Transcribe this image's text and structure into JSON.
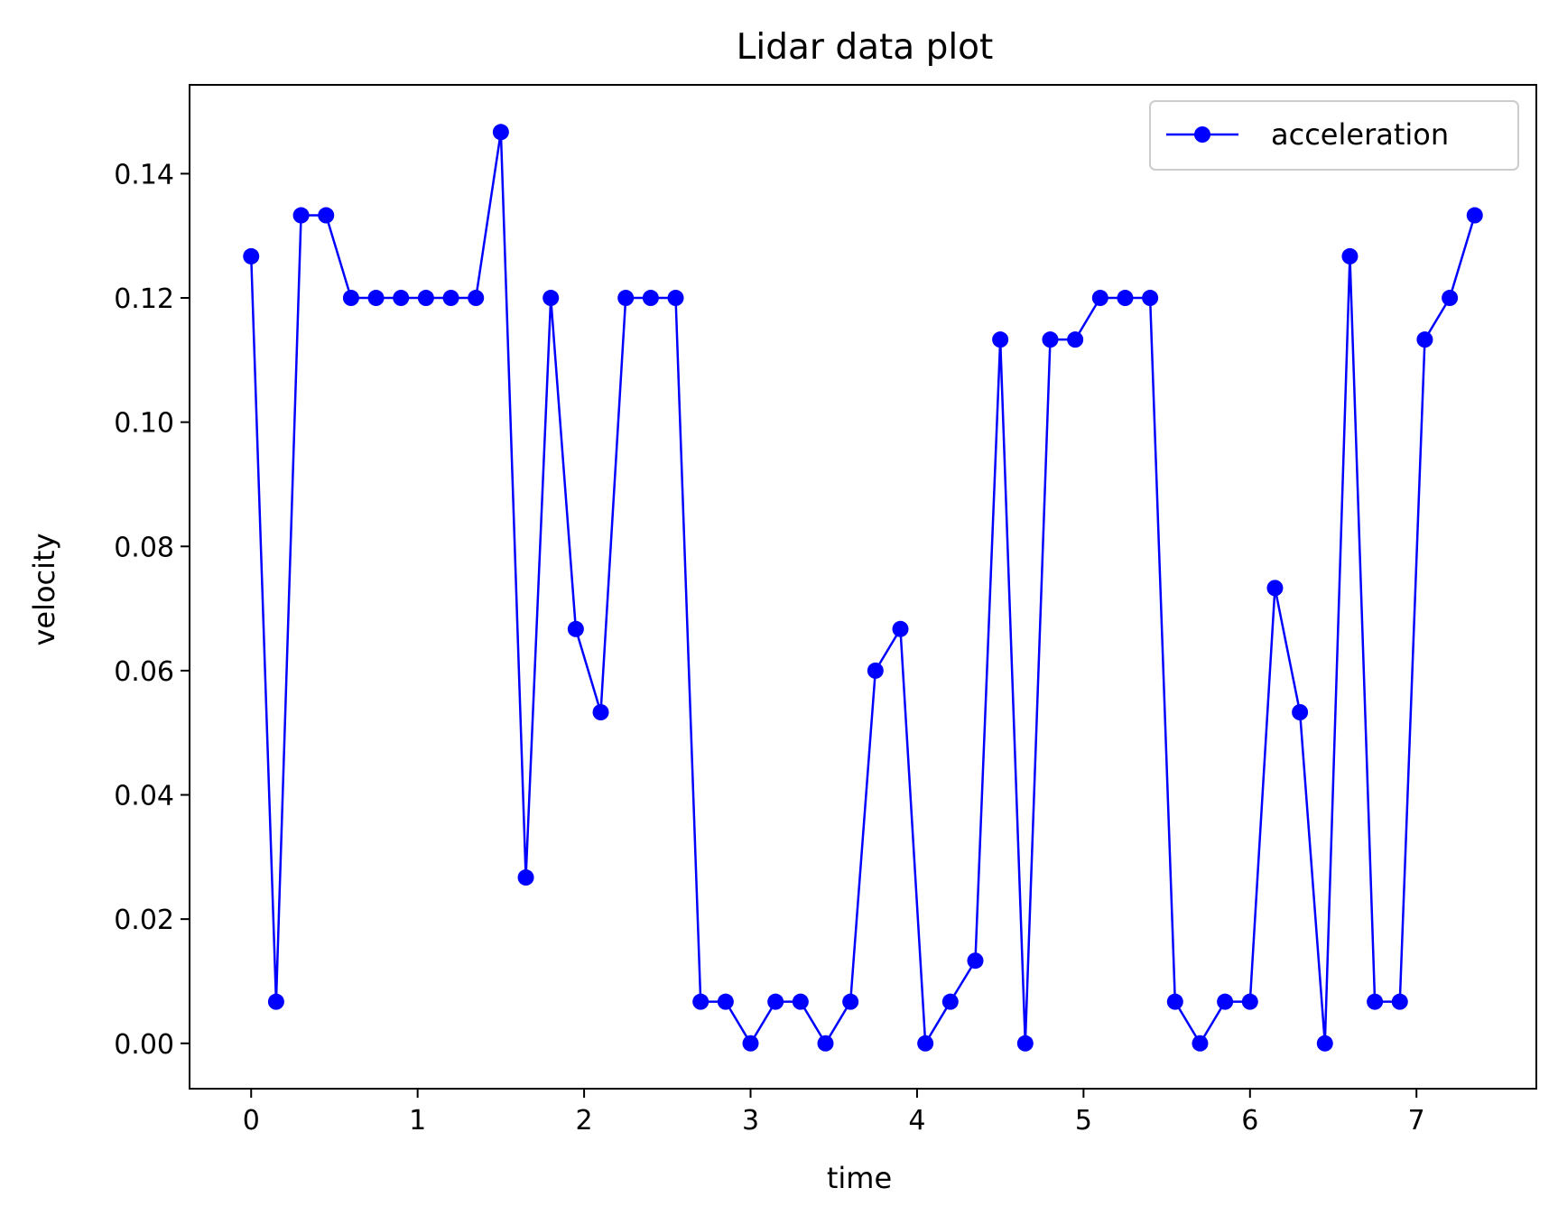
{
  "chart_data": {
    "type": "line",
    "title": "Lidar data plot",
    "xlabel": "time",
    "ylabel": "velocity",
    "xlim": [
      -0.37,
      7.72
    ],
    "ylim": [
      -0.0073,
      0.1543
    ],
    "xticks": [
      0,
      1,
      2,
      3,
      4,
      5,
      6,
      7
    ],
    "xtick_labels": [
      "0",
      "1",
      "2",
      "3",
      "4",
      "5",
      "6",
      "7"
    ],
    "yticks": [
      0.0,
      0.02,
      0.04,
      0.06,
      0.08,
      0.1,
      0.12,
      0.14
    ],
    "ytick_labels": [
      "0.00",
      "0.02",
      "0.04",
      "0.06",
      "0.08",
      "0.10",
      "0.12",
      "0.14"
    ],
    "grid": false,
    "legend_position": "top-right",
    "series": [
      {
        "name": "acceleration",
        "color": "#0000ff",
        "marker": "circle",
        "x": [
          0.0,
          0.15,
          0.3,
          0.45,
          0.6,
          0.75,
          0.9,
          1.05,
          1.2,
          1.35,
          1.5,
          1.65,
          1.8,
          1.95,
          2.1,
          2.25,
          2.4,
          2.55,
          2.7,
          2.85,
          3.0,
          3.15,
          3.3,
          3.45,
          3.6,
          3.75,
          3.9,
          4.05,
          4.2,
          4.35,
          4.5,
          4.65,
          4.8,
          4.95,
          5.1,
          5.25,
          5.4,
          5.55,
          5.7,
          5.85,
          6.0,
          6.15,
          6.3,
          6.45,
          6.6,
          6.75,
          6.9,
          7.05,
          7.2,
          7.35
        ],
        "y": [
          0.1267,
          0.0067,
          0.1333,
          0.1333,
          0.12,
          0.12,
          0.12,
          0.12,
          0.12,
          0.12,
          0.1467,
          0.0267,
          0.12,
          0.0667,
          0.0533,
          0.12,
          0.12,
          0.12,
          0.0067,
          0.0067,
          0.0,
          0.0067,
          0.0067,
          0.0,
          0.0067,
          0.06,
          0.0667,
          0.0,
          0.0067,
          0.0133,
          0.1133,
          0.0,
          0.1133,
          0.1133,
          0.12,
          0.12,
          0.12,
          0.0067,
          0.0,
          0.0067,
          0.0067,
          0.0733,
          0.0533,
          0.0,
          0.1267,
          0.0067,
          0.0067,
          0.1133,
          0.12,
          0.1333
        ]
      }
    ]
  }
}
